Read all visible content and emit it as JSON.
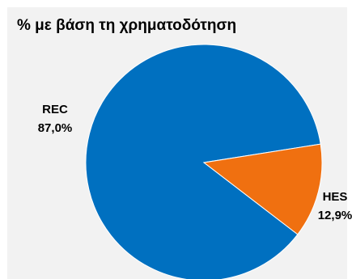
{
  "chart_data": {
    "type": "pie",
    "title": "% με βάση τη χρηματοδότηση",
    "categories": [
      "REC",
      "HES"
    ],
    "values": [
      87.0,
      12.9
    ],
    "value_labels": [
      "87,0%",
      "12,9%"
    ],
    "colors": [
      "#0070c0",
      "#f07010"
    ],
    "start_angle_deg": 0,
    "direction": "counterclockwise-from-right",
    "legend": "none",
    "grid": false
  }
}
